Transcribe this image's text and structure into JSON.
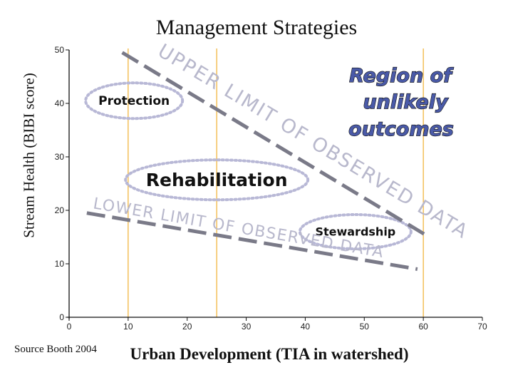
{
  "chart_data": {
    "type": "line",
    "title": "Management Strategies",
    "xlabel": "Urban Development (TIA in watershed)",
    "ylabel": "Stream Health (BIBI score)",
    "xlim": [
      0,
      70
    ],
    "ylim": [
      0,
      50
    ],
    "x_ticks": [
      "0",
      "10",
      "20",
      "30",
      "40",
      "50",
      "60",
      "70"
    ],
    "y_ticks": [
      "0",
      "10",
      "20",
      "30",
      "40",
      "50"
    ],
    "vertical_guides": [
      10,
      25,
      60
    ],
    "series": [
      {
        "name": "UPPER LIMIT OF OBSERVED DATA",
        "points": [
          [
            9,
            49.5
          ],
          [
            61,
            15
          ]
        ]
      },
      {
        "name": "LOWER LIMIT OF OBSERVED DATA",
        "points": [
          [
            3,
            19.5
          ],
          [
            59,
            9
          ]
        ]
      }
    ],
    "regions": [
      {
        "label": "Protection",
        "center": [
          11,
          40.5
        ]
      },
      {
        "label": "Rehabilitation",
        "center": [
          25,
          25.7
        ]
      },
      {
        "label": "Stewardship",
        "center": [
          48.5,
          16
        ]
      }
    ],
    "annotation": {
      "lines": [
        "Region of",
        "unlikely",
        "outcomes"
      ]
    },
    "source": "Source Booth 2004",
    "colors": {
      "limit_line": "#7a7a88",
      "limit_text": "#b8b8cc",
      "guide_line": "#f0b030",
      "region_outline": "#b8b8d6",
      "annotation_fill": "#4a5aa8",
      "axis": "#111111",
      "zero_tick": "#e8b000"
    }
  }
}
